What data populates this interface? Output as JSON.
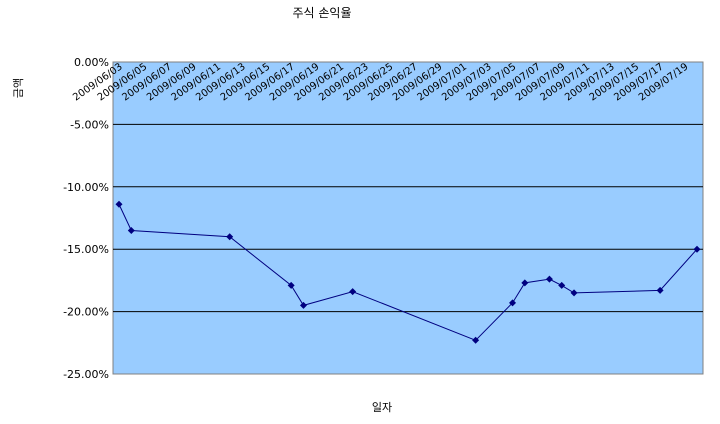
{
  "chart_data": {
    "type": "line",
    "title": "주식 손익율",
    "xlabel": "일자",
    "ylabel": "금액",
    "ylim": [
      -25,
      0
    ],
    "yticks": [
      0,
      -5,
      -10,
      -15,
      -20,
      -25
    ],
    "ytick_labels": [
      "0.00%",
      "-5.00%",
      "-10.00%",
      "-15.00%",
      "-20.00%",
      "-25.00%"
    ],
    "xlim": [
      "2009/06/03",
      "2009/07/20"
    ],
    "xtick_labels": [
      "2009/06/03",
      "2009/06/05",
      "2009/06/07",
      "2009/06/09",
      "2009/06/11",
      "2009/06/13",
      "2009/06/15",
      "2009/06/17",
      "2009/06/19",
      "2009/06/21",
      "2009/06/23",
      "2009/06/25",
      "2009/06/27",
      "2009/06/29",
      "2009/07/01",
      "2009/07/03",
      "2009/07/05",
      "2009/07/07",
      "2009/07/09",
      "2009/07/11",
      "2009/07/13",
      "2009/07/15",
      "2009/07/17",
      "2009/07/19"
    ],
    "grid": true,
    "plot_background": "#99ccff",
    "line_color": "#000080",
    "series": [
      {
        "x": [
          "2009/06/03",
          "2009/06/04",
          "2009/06/12",
          "2009/06/17",
          "2009/06/18",
          "2009/06/22",
          "2009/07/02",
          "2009/07/05",
          "2009/07/06",
          "2009/07/08",
          "2009/07/09",
          "2009/07/10",
          "2009/07/17",
          "2009/07/20"
        ],
        "values": [
          -11.4,
          -13.5,
          -14.0,
          -17.9,
          -19.5,
          -18.4,
          -22.3,
          -19.3,
          -17.7,
          -17.4,
          -17.9,
          -18.5,
          -18.3,
          -15.0
        ]
      }
    ]
  }
}
